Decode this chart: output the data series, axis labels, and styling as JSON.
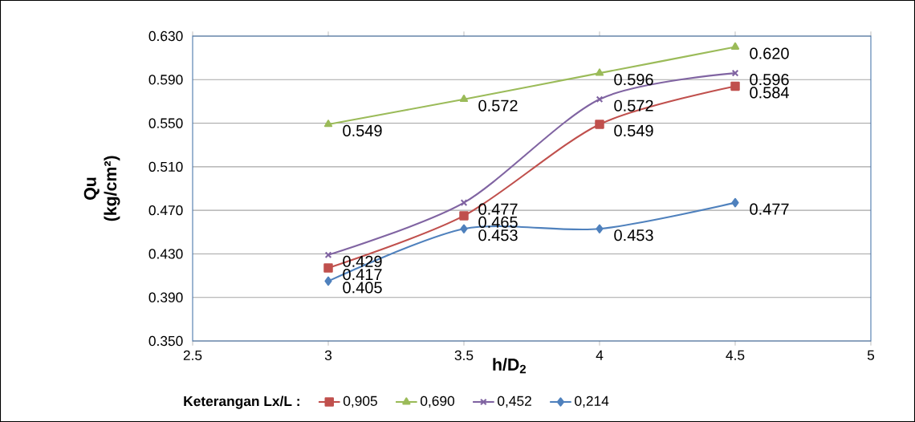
{
  "chart_data": {
    "type": "line",
    "xlabel": "h/D$_{2}$",
    "ylabel": "Qu (kg/cm²)",
    "legend_title": "Keterangan Lx/L :",
    "x": [
      3,
      3.5,
      4,
      4.5
    ],
    "xlim": [
      2.5,
      5
    ],
    "xticks": [
      2.5,
      3,
      3.5,
      4,
      4.5,
      5
    ],
    "ylim": [
      0.35,
      0.63
    ],
    "yticks": [
      {
        "value": 0.35,
        "label": "0.350"
      },
      {
        "value": 0.39,
        "label": "0.390"
      },
      {
        "value": 0.43,
        "label": "0.430"
      },
      {
        "value": 0.47,
        "label": "0.470"
      },
      {
        "value": 0.51,
        "label": "0.510"
      },
      {
        "value": 0.55,
        "label": "0.550"
      },
      {
        "value": 0.59,
        "label": "0.590"
      },
      {
        "value": 0.63,
        "label": "0.630"
      }
    ],
    "grid": "y",
    "legend": "bottom",
    "line_style": "solid",
    "series": [
      {
        "name": "0,905",
        "color": "#c0504d",
        "marker": "square",
        "values": [
          0.417,
          0.465,
          0.549,
          0.584
        ],
        "value_labels": [
          "0.417",
          "0.465",
          "0.549",
          "0.584"
        ]
      },
      {
        "name": "0,690",
        "color": "#9bbb59",
        "marker": "triangle",
        "values": [
          0.549,
          0.572,
          0.596,
          0.62
        ],
        "value_labels": [
          "0.549",
          "0.572",
          "0.596",
          "0.620"
        ]
      },
      {
        "name": "0,452",
        "color": "#8064a2",
        "marker": "cross",
        "values": [
          0.429,
          0.477,
          0.572,
          0.596
        ],
        "value_labels": [
          "0.429",
          "0.477",
          "0.572",
          "0.596"
        ]
      },
      {
        "name": "0,214",
        "color": "#4f81bd",
        "marker": "diamond",
        "values": [
          0.405,
          0.453,
          0.453,
          0.477
        ],
        "value_labels": [
          "0.405",
          "0.453",
          "0.453",
          "0.477"
        ]
      }
    ]
  }
}
